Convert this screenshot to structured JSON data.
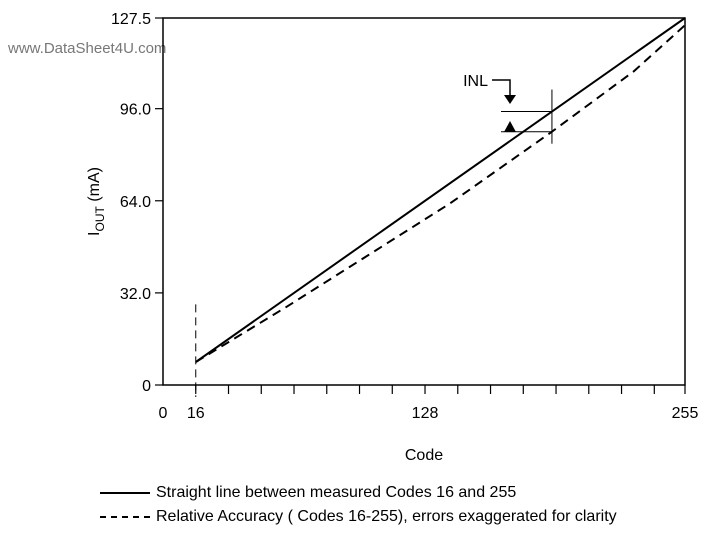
{
  "watermark": "www.DataSheet4U.com",
  "chart_data": {
    "type": "line",
    "xlabel": "Code",
    "ylabel_main": "I",
    "ylabel_sub": "OUT",
    "ylabel_unit": " (mA)",
    "xlim": [
      0,
      255
    ],
    "ylim": [
      0,
      127.5
    ],
    "xticks": [
      {
        "value": 0,
        "label": "0"
      },
      {
        "value": 16,
        "label": "16"
      },
      {
        "value": 128,
        "label": "128"
      },
      {
        "value": 255,
        "label": "255"
      }
    ],
    "yticks": [
      {
        "value": 0,
        "label": "0"
      },
      {
        "value": 32,
        "label": "32.0"
      },
      {
        "value": 64,
        "label": "64.0"
      },
      {
        "value": 96,
        "label": "96.0"
      },
      {
        "value": 127.5,
        "label": "127.5"
      }
    ],
    "series": [
      {
        "name": "Straight line between measured Codes 16 and 255",
        "style": "solid",
        "x": [
          16,
          255
        ],
        "y": [
          8,
          127.5
        ]
      },
      {
        "name": "Relative Accuracy ( Codes 16-255), errors exaggerated for clarity",
        "style": "dashed",
        "x": [
          16,
          60,
          100,
          140,
          190,
          230,
          255
        ],
        "y": [
          8,
          27,
          45,
          63,
          88,
          109,
          125
        ]
      }
    ],
    "annotations": [
      {
        "text": "INL",
        "x": 190
      }
    ],
    "grid": false,
    "legend_position": "bottom"
  }
}
